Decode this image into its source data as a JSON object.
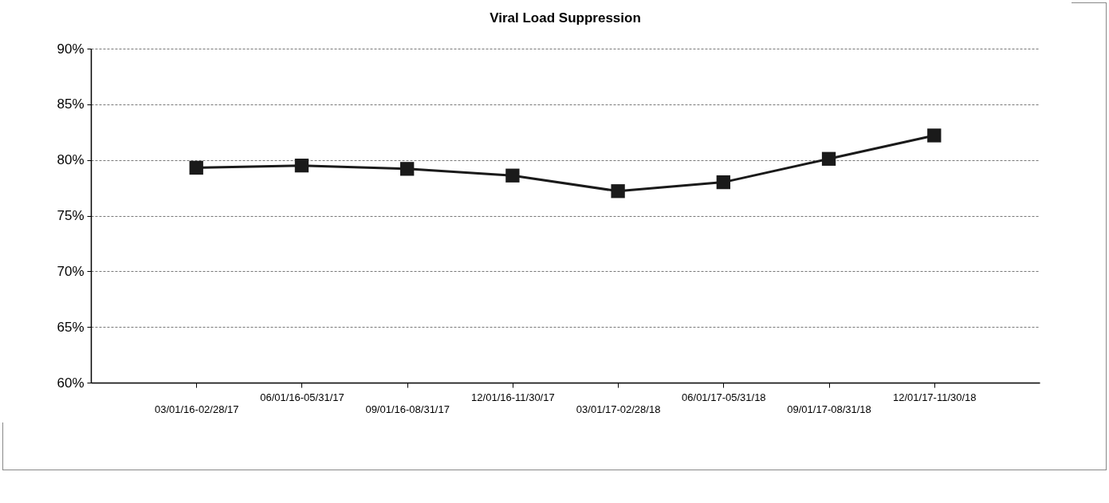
{
  "chart_data": {
    "type": "line",
    "title": "Viral Load Suppression",
    "categories": [
      "03/01/16-02/28/17",
      "06/01/16-05/31/17",
      "09/01/16-08/31/17",
      "12/01/16-11/30/17",
      "03/01/17-02/28/18",
      "06/01/17-05/31/18",
      "09/01/17-08/31/18",
      "12/01/17-11/30/18"
    ],
    "series": [
      {
        "color": "#1a1a1a",
        "values": [
          79.3,
          79.5,
          79.2,
          78.6,
          77.2,
          78.0,
          80.1,
          82.2
        ]
      }
    ],
    "ylim": [
      60,
      90
    ],
    "yticks": [
      {
        "value": 60,
        "label": "60%"
      },
      {
        "value": 65,
        "label": "65%"
      },
      {
        "value": 70,
        "label": "70%"
      },
      {
        "value": 75,
        "label": "75%"
      },
      {
        "value": 80,
        "label": "80%"
      },
      {
        "value": 85,
        "label": "85%"
      },
      {
        "value": 90,
        "label": "90%"
      }
    ],
    "grid": "y",
    "marker": "square",
    "line_style": "solid"
  }
}
